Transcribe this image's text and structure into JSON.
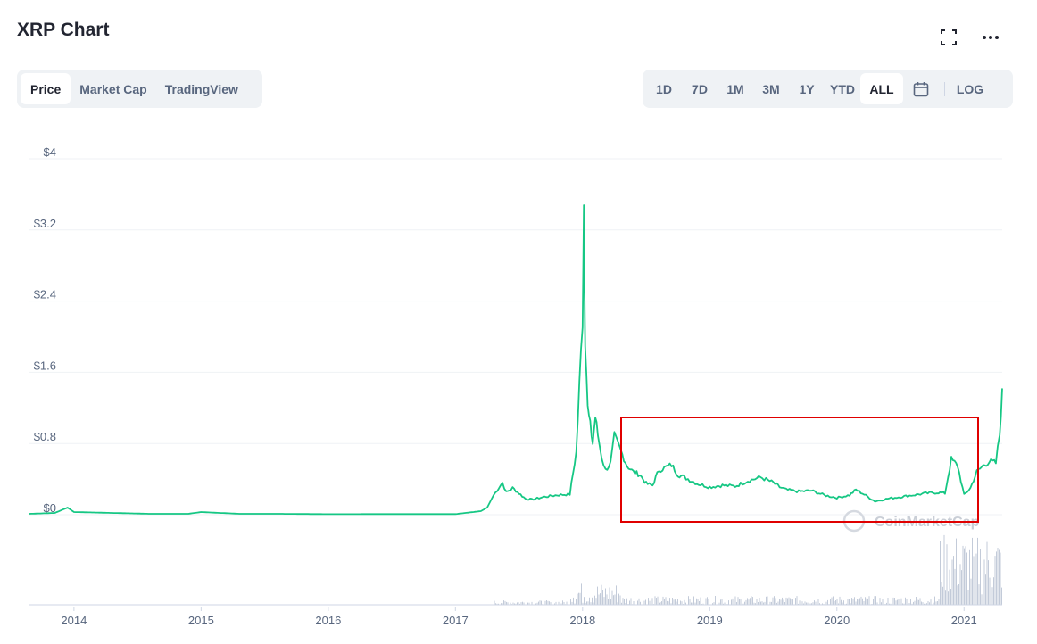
{
  "header": {
    "title": "XRP Chart"
  },
  "icons": {
    "fullscreen": "fullscreen-icon",
    "more": "more-horizontal-icon",
    "calendar": "calendar-icon"
  },
  "view_tabs": [
    {
      "label": "Price",
      "active": true
    },
    {
      "label": "Market Cap",
      "active": false
    },
    {
      "label": "TradingView",
      "active": false
    }
  ],
  "range_tabs": [
    {
      "label": "1D",
      "active": false
    },
    {
      "label": "7D",
      "active": false
    },
    {
      "label": "1M",
      "active": false
    },
    {
      "label": "3M",
      "active": false
    },
    {
      "label": "1Y",
      "active": false
    },
    {
      "label": "YTD",
      "active": false
    },
    {
      "label": "ALL",
      "active": true
    }
  ],
  "log_label": "LOG",
  "watermark": "CoinMarketCap",
  "colors": {
    "line": "#16c784",
    "volume": "#c3cbd9",
    "highlight": "#e00000",
    "grid": "#eff2f5"
  },
  "chart_data": {
    "type": "line",
    "title": "XRP Chart",
    "ylabel": "",
    "xlabel": "",
    "ylim": [
      0,
      4
    ],
    "xlim": [
      2013.65,
      2021.3
    ],
    "yticks": [
      "$0",
      "$0.8",
      "$1.6",
      "$2.4",
      "$3.2",
      "$4"
    ],
    "ytick_values": [
      0,
      0.8,
      1.6,
      2.4,
      3.2,
      4
    ],
    "xticks": [
      "2014",
      "2015",
      "2016",
      "2017",
      "2018",
      "2019",
      "2020",
      "2021"
    ],
    "xtick_values": [
      2014,
      2015,
      2016,
      2017,
      2018,
      2019,
      2020,
      2021
    ],
    "grid": true,
    "series": [
      {
        "values_x": [
          2013.65,
          2013.85,
          2013.95,
          2014.0,
          2014.3,
          2014.6,
          2014.9,
          2015.0,
          2015.3,
          2015.6,
          2016.0,
          2016.5,
          2017.0,
          2017.2,
          2017.25,
          2017.3,
          2017.37,
          2017.4,
          2017.45,
          2017.5,
          2017.55,
          2017.6,
          2017.7,
          2017.8,
          2017.9,
          2017.95,
          2018.0,
          2018.01,
          2018.02,
          2018.04,
          2018.06,
          2018.08,
          2018.1,
          2018.12,
          2018.15,
          2018.18,
          2018.22,
          2018.25,
          2018.3,
          2018.35,
          2018.4,
          2018.45,
          2018.5,
          2018.55,
          2018.6,
          2018.7,
          2018.75,
          2018.8,
          2018.9,
          2019.0,
          2019.1,
          2019.2,
          2019.3,
          2019.4,
          2019.5,
          2019.55,
          2019.6,
          2019.7,
          2019.8,
          2019.9,
          2020.0,
          2020.1,
          2020.15,
          2020.2,
          2020.3,
          2020.4,
          2020.5,
          2020.6,
          2020.7,
          2020.8,
          2020.85,
          2020.9,
          2020.95,
          2021.0,
          2021.05,
          2021.1,
          2021.15,
          2021.2,
          2021.25,
          2021.28,
          2021.3
        ],
        "values": [
          0.01,
          0.02,
          0.08,
          0.03,
          0.02,
          0.01,
          0.01,
          0.03,
          0.01,
          0.01,
          0.006,
          0.007,
          0.007,
          0.04,
          0.08,
          0.22,
          0.36,
          0.25,
          0.3,
          0.24,
          0.18,
          0.17,
          0.2,
          0.22,
          0.23,
          0.7,
          2.2,
          3.5,
          2.0,
          1.2,
          1.0,
          0.8,
          1.1,
          0.9,
          0.65,
          0.5,
          0.58,
          0.88,
          0.72,
          0.55,
          0.48,
          0.45,
          0.35,
          0.33,
          0.5,
          0.56,
          0.45,
          0.42,
          0.35,
          0.31,
          0.33,
          0.32,
          0.38,
          0.42,
          0.36,
          0.31,
          0.28,
          0.26,
          0.27,
          0.22,
          0.19,
          0.22,
          0.28,
          0.24,
          0.15,
          0.18,
          0.2,
          0.22,
          0.24,
          0.25,
          0.24,
          0.62,
          0.55,
          0.22,
          0.3,
          0.48,
          0.55,
          0.6,
          0.58,
          0.9,
          1.42
        ]
      }
    ],
    "annotations": [
      "red rectangle highlighting 2018–2020 range"
    ]
  }
}
